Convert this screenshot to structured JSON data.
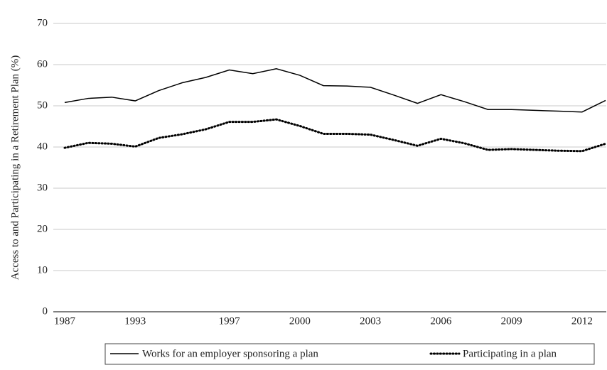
{
  "chart_data": {
    "type": "line",
    "y_label": "Access to and Participating in a Retirement Plan (%)",
    "categories": [
      "1987",
      null,
      null,
      "1993",
      null,
      null,
      null,
      "1997",
      null,
      null,
      "2000",
      null,
      null,
      "2003",
      null,
      null,
      "2006",
      null,
      null,
      "2009",
      null,
      null,
      "2012",
      null
    ],
    "series": [
      {
        "name": "Works for an employer sponsoring a plan",
        "color": "#000000",
        "style": "solid",
        "values": [
          50.8,
          51.8,
          52.1,
          51.2,
          53.7,
          55.6,
          56.9,
          58.7,
          57.8,
          59.0,
          57.4,
          54.9,
          54.8,
          54.5,
          52.6,
          50.6,
          52.7,
          51.0,
          49.1,
          49.1,
          48.9,
          48.7,
          48.5,
          51.3
        ]
      },
      {
        "name": "Participating in a plan",
        "color": "#000000",
        "style": "dotted",
        "values": [
          39.8,
          41.0,
          40.8,
          40.1,
          42.2,
          43.1,
          44.3,
          46.1,
          46.1,
          46.7,
          45.1,
          43.2,
          43.2,
          43.0,
          41.7,
          40.3,
          42.0,
          40.9,
          39.3,
          39.5,
          39.3,
          39.1,
          39.0,
          40.8
        ]
      }
    ],
    "ylim": [
      0,
      70
    ],
    "yticks": [
      0,
      10,
      20,
      30,
      40,
      50,
      60,
      70
    ],
    "grid": true,
    "legend": "bottom"
  }
}
